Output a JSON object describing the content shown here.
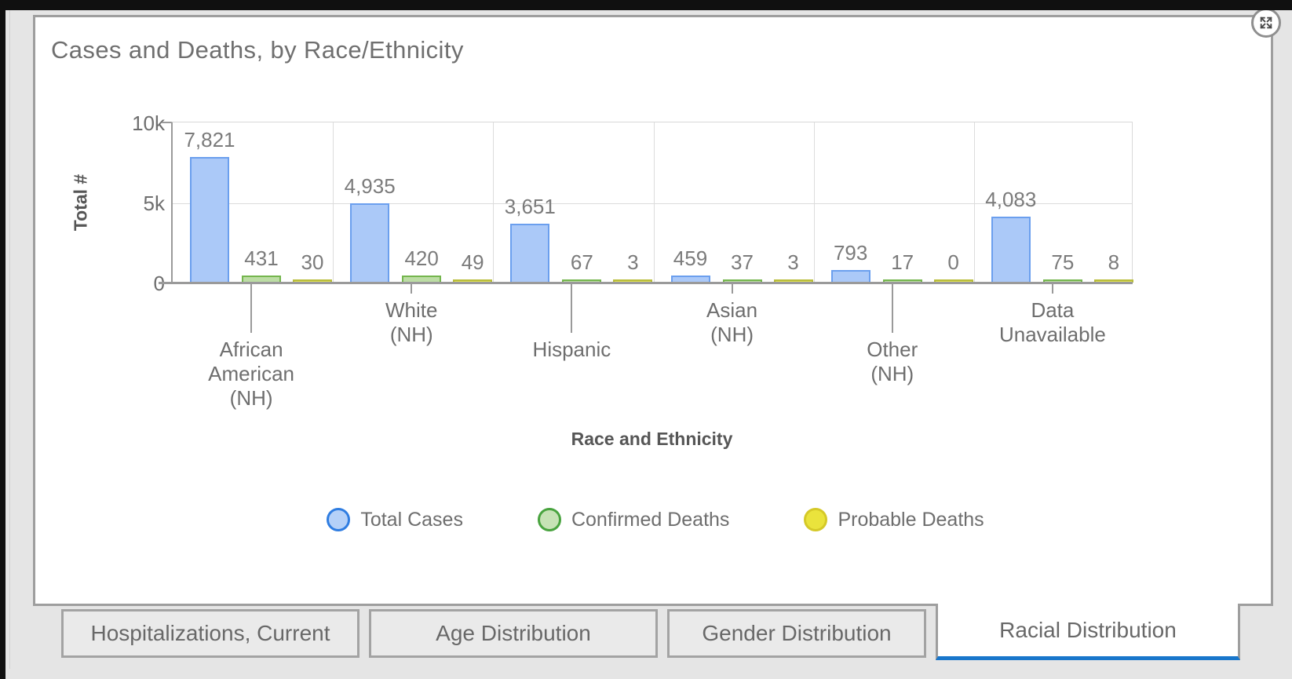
{
  "panel": {
    "title": "Cases and Deaths, by Race/Ethnicity"
  },
  "controls": {
    "expand_icon": "expand-arrows"
  },
  "chart_data": {
    "type": "bar",
    "title": "Cases and Deaths, by Race/Ethnicity",
    "xlabel": "Race and Ethnicity",
    "ylabel": "Total #",
    "ylim": [
      0,
      10000
    ],
    "grid": true,
    "legend_position": "bottom-center",
    "yticks": [
      {
        "value": 0,
        "label": "0"
      },
      {
        "value": 5000,
        "label": "5k"
      },
      {
        "value": 10000,
        "label": "10k"
      }
    ],
    "categories": [
      {
        "label": "African American (NH)",
        "lines": [
          "African",
          "American",
          "(NH)"
        ],
        "row": "low"
      },
      {
        "label": "White (NH)",
        "lines": [
          "White",
          "(NH)"
        ],
        "row": "high"
      },
      {
        "label": "Hispanic",
        "lines": [
          "Hispanic"
        ],
        "row": "low"
      },
      {
        "label": "Asian (NH)",
        "lines": [
          "Asian",
          "(NH)"
        ],
        "row": "high"
      },
      {
        "label": "Other (NH)",
        "lines": [
          "Other",
          "(NH)"
        ],
        "row": "low"
      },
      {
        "label": "Data Unavailable",
        "lines": [
          "Data",
          "Unavailable"
        ],
        "row": "high"
      }
    ],
    "series": [
      {
        "name": "Total Cases",
        "values": [
          7821,
          4935,
          3651,
          459,
          793,
          4083
        ],
        "display_values": [
          "7,821",
          "4,935",
          "3,651",
          "459",
          "793",
          "4,083"
        ],
        "fill": "#abc9f8",
        "stroke": "#6b9fee",
        "legend_fill": "#b5d1f8",
        "legend_stroke": "#2f7de1"
      },
      {
        "name": "Confirmed Deaths",
        "values": [
          431,
          420,
          67,
          37,
          17,
          75
        ],
        "display_values": [
          "431",
          "420",
          "67",
          "37",
          "17",
          "75"
        ],
        "fill": "#bcdda4",
        "stroke": "#74b64d",
        "legend_fill": "#c6e2b5",
        "legend_stroke": "#48a33e"
      },
      {
        "name": "Probable Deaths",
        "values": [
          30,
          49,
          3,
          3,
          0,
          8
        ],
        "display_values": [
          "30",
          "49",
          "3",
          "3",
          "0",
          "8"
        ],
        "fill": "#dede52",
        "stroke": "#b8bd3a",
        "legend_fill": "#eae33c",
        "legend_stroke": "#d5c928"
      }
    ]
  },
  "tabs": [
    {
      "label": "Hospitalizations, Current",
      "active": false
    },
    {
      "label": "Age Distribution",
      "active": false
    },
    {
      "label": "Gender Distribution",
      "active": false
    },
    {
      "label": "Racial Distribution",
      "active": true
    }
  ],
  "ui": {
    "active_tab_underline": "#1876cb",
    "panel_border": "#9e9e9e"
  }
}
